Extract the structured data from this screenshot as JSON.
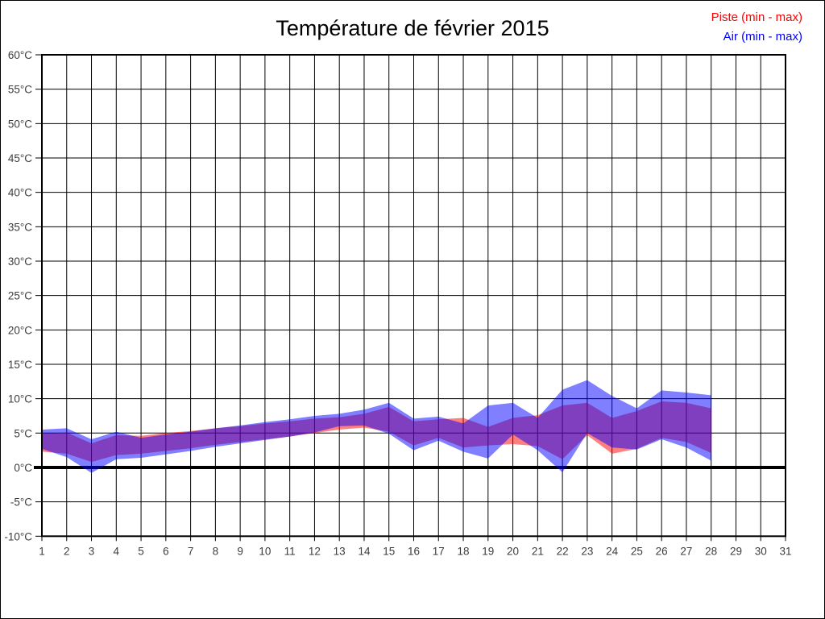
{
  "title": "Température de février 2015",
  "legend": {
    "piste": {
      "label": "Piste (min - max)",
      "color": "#ff0000"
    },
    "air": {
      "label": "Air (min - max)",
      "color": "#0000ff"
    }
  },
  "chart_data": {
    "type": "area",
    "title": "Température de février 2015",
    "subtitle": "",
    "xlabel": "",
    "ylabel": "",
    "xlim": [
      1,
      31
    ],
    "ylim": [
      -10,
      60
    ],
    "grid": true,
    "legend_position": "top-right",
    "zero_line_value": 0,
    "x_tick_labels": [
      "1",
      "2",
      "3",
      "4",
      "5",
      "6",
      "7",
      "8",
      "9",
      "10",
      "11",
      "12",
      "13",
      "14",
      "15",
      "16",
      "17",
      "18",
      "19",
      "20",
      "21",
      "22",
      "23",
      "24",
      "25",
      "26",
      "27",
      "28",
      "29",
      "30",
      "31"
    ],
    "y_tick_values": [
      60,
      55,
      50,
      45,
      40,
      35,
      30,
      25,
      20,
      15,
      10,
      5,
      0,
      -5,
      -10
    ],
    "y_tick_labels": [
      "60°C",
      "55°C",
      "50°C",
      "45°C",
      "40°C",
      "35°C",
      "30°C",
      "25°C",
      "20°C",
      "15°C",
      "10°C",
      "5°C",
      "0°C",
      "-5°C",
      "-10°C"
    ],
    "days": [
      1,
      2,
      3,
      4,
      5,
      6,
      7,
      8,
      9,
      10,
      11,
      12,
      13,
      14,
      15,
      16,
      17,
      18,
      19,
      20,
      21,
      22,
      23,
      24,
      25,
      26,
      27,
      28
    ],
    "series": [
      {
        "name": "Piste (min - max)",
        "color": "#ff0000",
        "fill_opacity": 0.5,
        "min": [
          2.3,
          2.0,
          0.8,
          1.8,
          2.0,
          2.4,
          2.8,
          3.3,
          3.7,
          4.1,
          4.5,
          5.0,
          5.5,
          5.8,
          5.2,
          3.2,
          4.3,
          2.9,
          3.2,
          3.4,
          3.1,
          1.2,
          4.7,
          2.0,
          2.7,
          4.3,
          3.7,
          2.1
        ],
        "max": [
          4.9,
          5.1,
          3.5,
          4.7,
          4.6,
          5.0,
          5.3,
          5.7,
          6.0,
          6.4,
          6.7,
          7.1,
          7.3,
          7.8,
          8.8,
          6.7,
          7.0,
          7.2,
          5.9,
          7.2,
          7.6,
          9.0,
          9.4,
          7.2,
          8.2,
          9.6,
          9.4,
          8.6
        ]
      },
      {
        "name": "Air (min - max)",
        "color": "#0000ff",
        "fill_opacity": 0.5,
        "min": [
          2.7,
          1.5,
          -0.8,
          1.2,
          1.4,
          1.9,
          2.4,
          3.0,
          3.5,
          4.0,
          4.5,
          5.1,
          6.0,
          6.1,
          4.9,
          2.5,
          3.9,
          2.3,
          1.3,
          4.8,
          2.5,
          -0.7,
          5.0,
          2.9,
          2.6,
          4.1,
          2.9,
          1.0
        ],
        "max": [
          5.5,
          5.7,
          4.1,
          5.2,
          4.3,
          4.8,
          5.2,
          5.7,
          6.1,
          6.6,
          7.0,
          7.5,
          7.8,
          8.4,
          9.4,
          7.1,
          7.4,
          6.4,
          9.0,
          9.4,
          7.2,
          11.3,
          12.7,
          10.4,
          8.6,
          11.2,
          10.9,
          10.5
        ]
      }
    ]
  }
}
